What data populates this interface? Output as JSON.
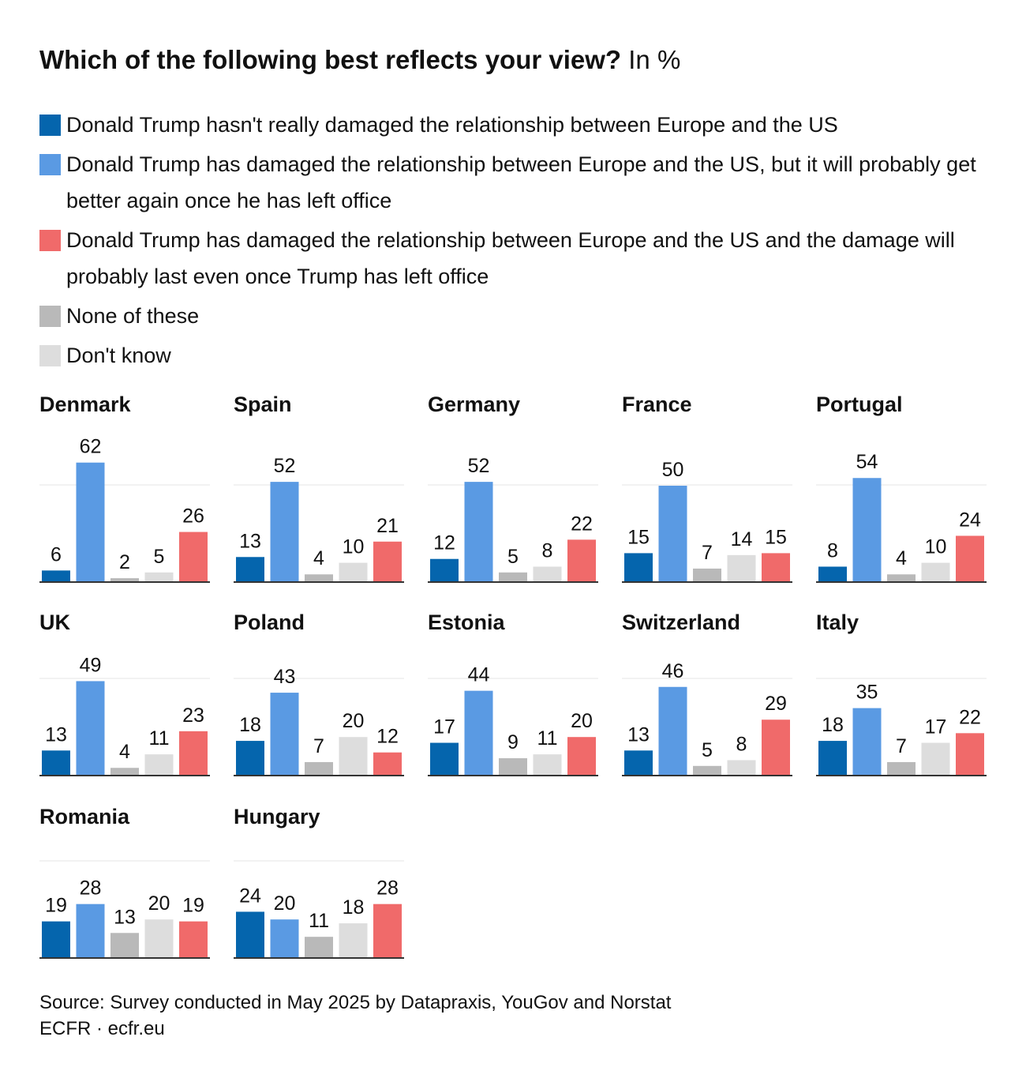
{
  "title": {
    "bold": "Which of the following best reflects your view?",
    "unit": "In %"
  },
  "legend": [
    {
      "label": "Donald Trump hasn't really damaged the relationship between Europe and the US",
      "color": "#0565ad"
    },
    {
      "label": "Donald Trump has damaged the relationship between Europe and the US, but it will probably get better again once he has left office",
      "color": "#5a9ae3"
    },
    {
      "label": "Donald Trump has damaged the relationship between Europe and the US and the damage will probably last even once Trump has left office",
      "color": "#f06a6a"
    },
    {
      "label": "None of these",
      "color": "#b9b9b9"
    },
    {
      "label": "Don't know",
      "color": "#dddddd"
    }
  ],
  "chart_data": {
    "type": "bar",
    "title": "Which of the following best reflects your view? In %",
    "categories": [
      "Hasn't really damaged",
      "Damaged, but will get better",
      "None of these",
      "Don't know",
      "Damaged, damage will last"
    ],
    "colors": [
      "#0565ad",
      "#5a9ae3",
      "#b9b9b9",
      "#dddddd",
      "#f06a6a"
    ],
    "ylim": [
      0,
      70
    ],
    "countries": [
      {
        "name": "Denmark",
        "values": [
          6,
          62,
          2,
          5,
          26
        ]
      },
      {
        "name": "Spain",
        "values": [
          13,
          52,
          4,
          10,
          21
        ]
      },
      {
        "name": "Germany",
        "values": [
          12,
          52,
          5,
          8,
          22
        ]
      },
      {
        "name": "France",
        "values": [
          15,
          50,
          7,
          14,
          15
        ]
      },
      {
        "name": "Portugal",
        "values": [
          8,
          54,
          4,
          10,
          24
        ]
      },
      {
        "name": "UK",
        "values": [
          13,
          49,
          4,
          11,
          23
        ]
      },
      {
        "name": "Poland",
        "values": [
          18,
          43,
          7,
          20,
          12
        ]
      },
      {
        "name": "Estonia",
        "values": [
          17,
          44,
          9,
          11,
          20
        ]
      },
      {
        "name": "Switzerland",
        "values": [
          13,
          46,
          5,
          8,
          29
        ]
      },
      {
        "name": "Italy",
        "values": [
          18,
          35,
          7,
          17,
          22
        ]
      },
      {
        "name": "Romania",
        "values": [
          19,
          28,
          13,
          20,
          19
        ]
      },
      {
        "name": "Hungary",
        "values": [
          24,
          20,
          11,
          18,
          28
        ]
      }
    ]
  },
  "source": "Source: Survey conducted in May 2025 by Datapraxis, YouGov and Norstat",
  "credit": "ECFR · ecfr.eu"
}
